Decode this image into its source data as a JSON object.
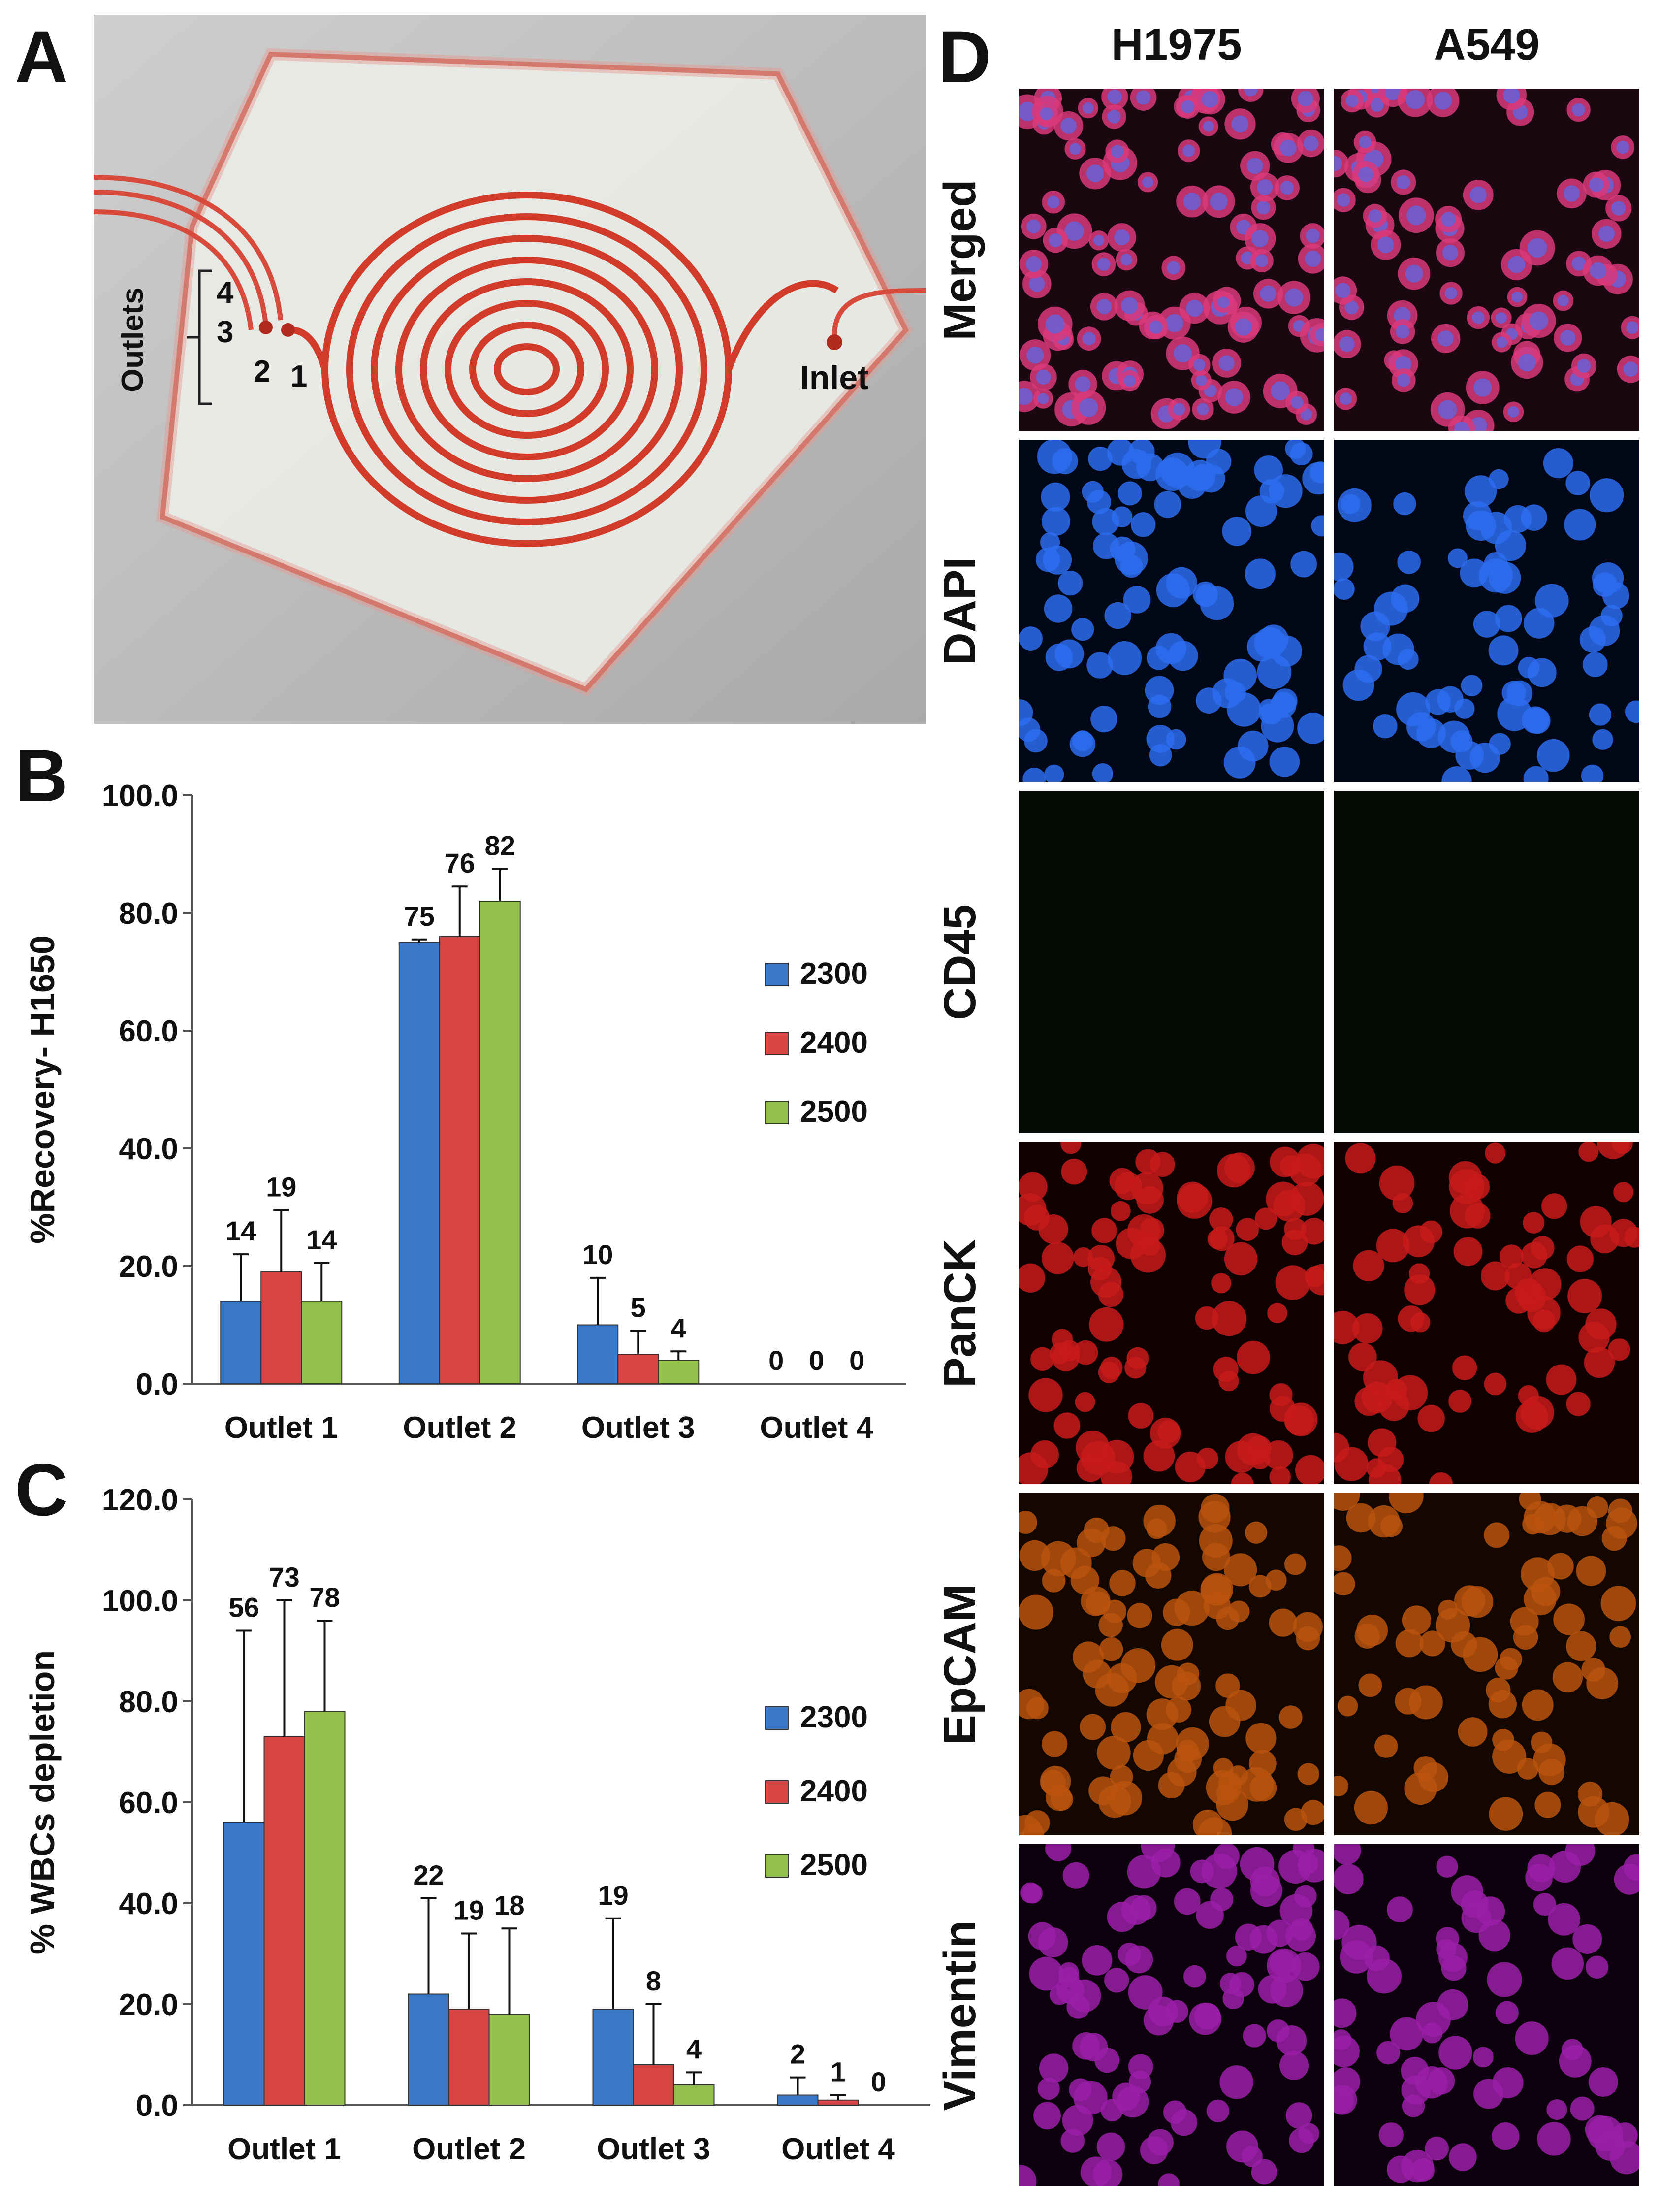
{
  "panels": {
    "a": "A",
    "b": "B",
    "c": "C",
    "d": "D"
  },
  "photo": {
    "outlets_label": "Outlets",
    "outlet_numbers": [
      "4",
      "3",
      "2",
      "1"
    ],
    "inlet_label": "Inlet",
    "channel_color": "#d23a2a"
  },
  "chart_b": {
    "type": "bar",
    "categories": [
      "Outlet 1",
      "Outlet 2",
      "Outlet 3",
      "Outlet 4"
    ],
    "series": [
      {
        "name": "2300",
        "values": [
          14,
          75,
          10,
          0
        ],
        "errors": [
          8,
          0.5,
          8,
          0
        ],
        "color": "#3b78c8"
      },
      {
        "name": "2400",
        "values": [
          19,
          76,
          5,
          0
        ],
        "errors": [
          10.5,
          8.5,
          4,
          0
        ],
        "color": "#d84545"
      },
      {
        "name": "2500",
        "values": [
          14,
          82,
          4,
          0
        ],
        "errors": [
          6.5,
          5.5,
          1.5,
          0
        ],
        "color": "#93c04a"
      }
    ],
    "labels": [
      [
        "14",
        "75",
        "10",
        "0"
      ],
      [
        "19",
        "76",
        "5",
        "0"
      ],
      [
        "14",
        "82",
        "4",
        "0"
      ]
    ],
    "ylabel": "%Recovery- H1650",
    "ylim": [
      0,
      100
    ],
    "yticks": [
      "0.0",
      "20.0",
      "40.0",
      "60.0",
      "80.0",
      "100.0"
    ],
    "legend_position": "right"
  },
  "chart_c": {
    "type": "bar",
    "categories": [
      "Outlet 1",
      "Outlet 2",
      "Outlet 3",
      "Outlet 4"
    ],
    "series": [
      {
        "name": "2300",
        "values": [
          56,
          22,
          19,
          2
        ],
        "errors": [
          38,
          19,
          18,
          3.5
        ],
        "color": "#3b78c8"
      },
      {
        "name": "2400",
        "values": [
          73,
          19,
          8,
          1
        ],
        "errors": [
          27,
          15,
          12,
          1
        ],
        "color": "#d84545"
      },
      {
        "name": "2500",
        "values": [
          78,
          18,
          4,
          0
        ],
        "errors": [
          18,
          17,
          2.5,
          0
        ],
        "color": "#93c04a"
      }
    ],
    "labels": [
      [
        "56",
        "22",
        "19",
        "2"
      ],
      [
        "73",
        "19",
        "8",
        "1"
      ],
      [
        "78",
        "18",
        "4",
        "0"
      ]
    ],
    "ylabel": "% WBCs depletion",
    "ylim": [
      0,
      120
    ],
    "yticks": [
      "0.0",
      "20.0",
      "40.0",
      "60.0",
      "80.0",
      "100.0",
      "120.0"
    ],
    "legend_position": "right"
  },
  "micrographs": {
    "columns": [
      "H1975",
      "A549"
    ],
    "rows": [
      {
        "label": "Merged",
        "bg": "#1a0710",
        "cell": "#d9387a",
        "nucleus": "#6b5fd0"
      },
      {
        "label": "DAPI",
        "bg": "#020818",
        "cell": "#2b6cf0",
        "nucleus": "#2b6cf0"
      },
      {
        "label": "CD45",
        "bg": "#040a04",
        "cell": "#0b180b",
        "nucleus": "#0b180b"
      },
      {
        "label": "PanCK",
        "bg": "#100000",
        "cell": "#c81a1a",
        "nucleus": "#7a0a0a"
      },
      {
        "label": "EpCAM",
        "bg": "#140700",
        "cell": "#b8520e",
        "nucleus": "#5a2705"
      },
      {
        "label": "Vimentin",
        "bg": "#0e010e",
        "cell": "#9a1ea8",
        "nucleus": "#5e0f68"
      }
    ]
  }
}
